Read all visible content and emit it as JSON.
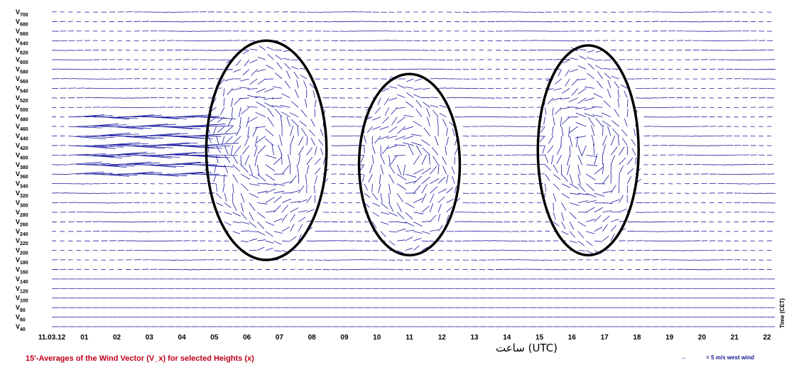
{
  "chart_data": {
    "type": "vector-field",
    "title": "15'-Averages of the Wind Vector (V_x) for selected Heights (x)",
    "xlabel": "ساعت (UTC)",
    "time_axis_label": "Time (CET)",
    "legend": "= 5 m/s west wind",
    "x_tick_labels": [
      "11.03.12",
      "01",
      "02",
      "03",
      "04",
      "05",
      "06",
      "07",
      "08",
      "09",
      "10",
      "11",
      "12",
      "13",
      "14",
      "15",
      "16",
      "17",
      "18",
      "19",
      "20",
      "21",
      "22"
    ],
    "y_heights": [
      40,
      60,
      80,
      100,
      120,
      140,
      160,
      180,
      200,
      220,
      240,
      260,
      280,
      300,
      320,
      340,
      360,
      380,
      400,
      420,
      440,
      460,
      480,
      500,
      520,
      540,
      560,
      580,
      600,
      620,
      640,
      660,
      680,
      700
    ],
    "y_tick_prefix": "V",
    "xlim": [
      0,
      22
    ],
    "ylim": [
      40,
      700
    ],
    "highlighted_regions": [
      {
        "center_hour": 6.6,
        "center_height": 410,
        "hour_radius": 1.85,
        "height_radius": 230
      },
      {
        "center_hour": 11.0,
        "center_height": 380,
        "hour_radius": 1.55,
        "height_radius": 190
      },
      {
        "center_hour": 16.5,
        "center_height": 410,
        "hour_radius": 1.55,
        "height_radius": 220
      }
    ],
    "colors": {
      "vectors": "#1a1aa0",
      "ellipses": "#000000",
      "caption": "#c0001a"
    }
  }
}
